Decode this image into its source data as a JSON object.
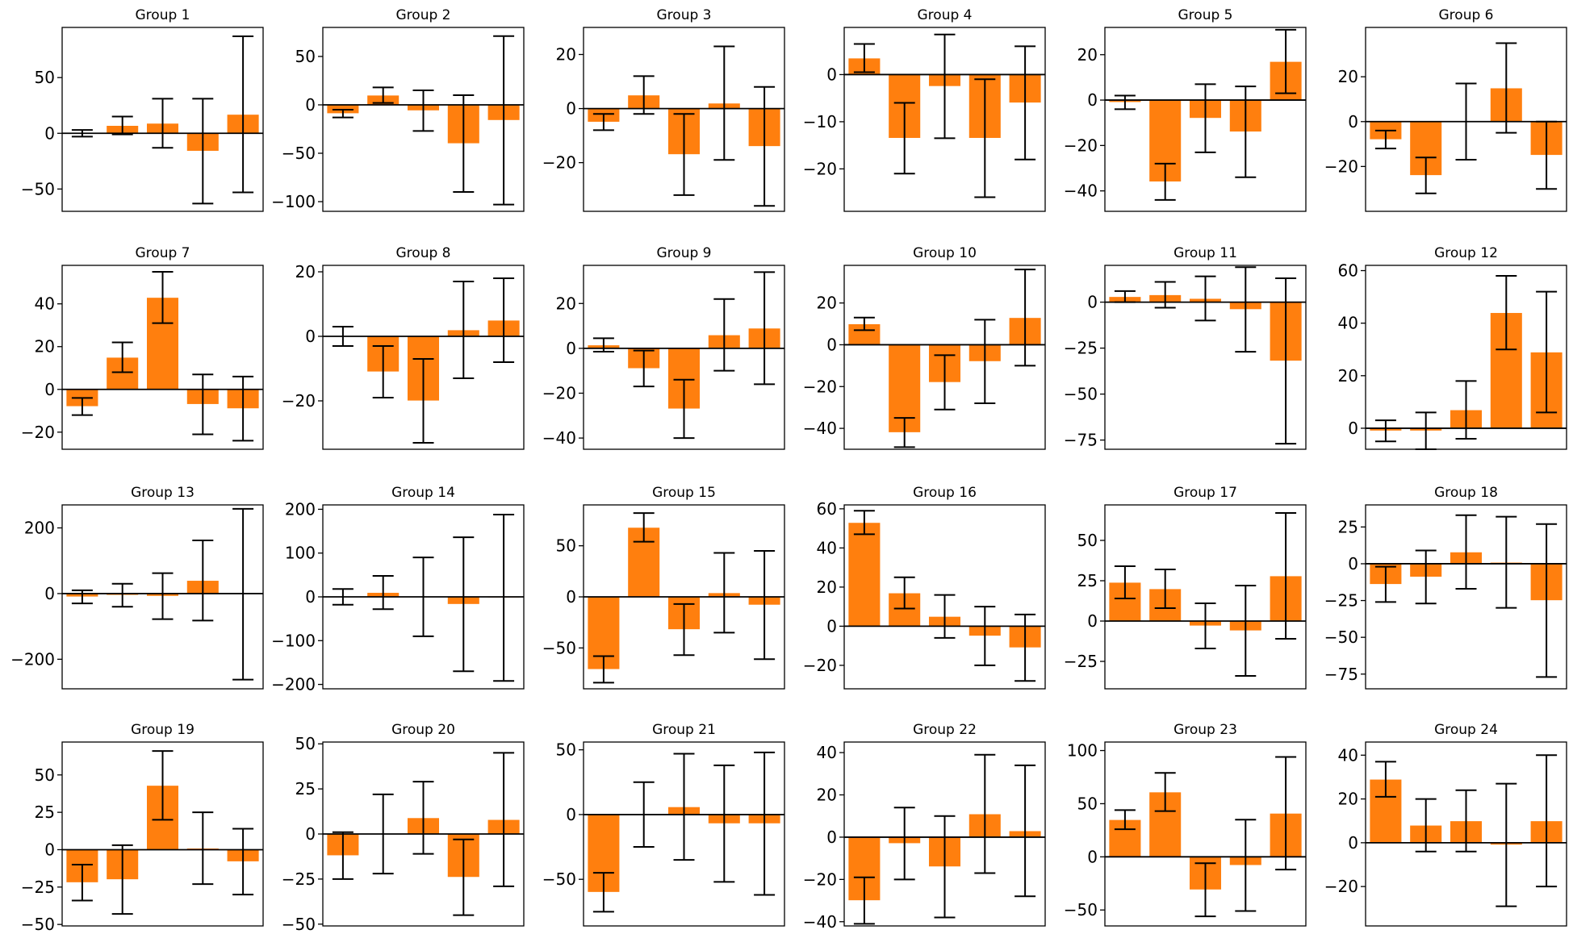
{
  "chart_data": [
    {
      "title": "Group 1",
      "type": "bar",
      "ylim": [
        -70,
        95
      ],
      "ticks": [
        50,
        0,
        -50
      ],
      "values": [
        0,
        7,
        9,
        -16,
        17
      ],
      "errors": [
        3,
        8,
        22,
        47,
        70
      ]
    },
    {
      "title": "Group 2",
      "type": "bar",
      "ylim": [
        -110,
        80
      ],
      "ticks": [
        50,
        0,
        -50,
        -100
      ],
      "values": [
        -9,
        10,
        -6,
        -40,
        -16
      ],
      "errors": [
        4,
        8,
        21,
        50,
        87
      ]
    },
    {
      "title": "Group 3",
      "type": "bar",
      "ylim": [
        -38,
        30
      ],
      "ticks": [
        20,
        0,
        -20
      ],
      "values": [
        -5,
        5,
        -17,
        2,
        -14
      ],
      "errors": [
        3,
        7,
        15,
        21,
        22
      ]
    },
    {
      "title": "Group 4",
      "type": "bar",
      "ylim": [
        -29,
        10
      ],
      "ticks": [
        0,
        -10,
        -20
      ],
      "values": [
        3.5,
        -13.5,
        -2.5,
        -13.5,
        -6
      ],
      "errors": [
        3,
        7.5,
        11,
        12.5,
        12
      ]
    },
    {
      "title": "Group 5",
      "type": "bar",
      "ylim": [
        -49,
        32
      ],
      "ticks": [
        20,
        0,
        -20,
        -40
      ],
      "values": [
        -1,
        -36,
        -8,
        -14,
        17
      ],
      "errors": [
        3,
        8,
        15,
        20,
        14
      ]
    },
    {
      "title": "Group 6",
      "type": "bar",
      "ylim": [
        -40,
        42
      ],
      "ticks": [
        20,
        0,
        -20
      ],
      "values": [
        -8,
        -24,
        0,
        15,
        -15
      ],
      "errors": [
        4,
        8,
        17,
        20,
        15
      ]
    },
    {
      "title": "Group 7",
      "type": "bar",
      "ylim": [
        -28,
        58
      ],
      "ticks": [
        40,
        20,
        0,
        -20
      ],
      "values": [
        -8,
        15,
        43,
        -7,
        -9
      ],
      "errors": [
        4,
        7,
        12,
        14,
        15
      ]
    },
    {
      "title": "Group 8",
      "type": "bar",
      "ylim": [
        -35,
        22
      ],
      "ticks": [
        20,
        0,
        -20
      ],
      "values": [
        0,
        -11,
        -20,
        2,
        5
      ],
      "errors": [
        3,
        8,
        13,
        15,
        13
      ]
    },
    {
      "title": "Group 9",
      "type": "bar",
      "ylim": [
        -45,
        37
      ],
      "ticks": [
        20,
        0,
        -20,
        -40
      ],
      "values": [
        1.5,
        -9,
        -27,
        6,
        9
      ],
      "errors": [
        3,
        8,
        13,
        16,
        25
      ]
    },
    {
      "title": "Group 10",
      "type": "bar",
      "ylim": [
        -50,
        38
      ],
      "ticks": [
        20,
        0,
        -20,
        -40
      ],
      "values": [
        10,
        -42,
        -18,
        -8,
        13
      ],
      "errors": [
        3,
        7,
        13,
        20,
        23
      ]
    },
    {
      "title": "Group 11",
      "type": "bar",
      "ylim": [
        -80,
        20
      ],
      "ticks": [
        0,
        -25,
        -50,
        -75
      ],
      "values": [
        3,
        4,
        2,
        -4,
        -32
      ],
      "errors": [
        3,
        7,
        12,
        23,
        45
      ]
    },
    {
      "title": "Group 12",
      "type": "bar",
      "ylim": [
        -8,
        62
      ],
      "ticks": [
        60,
        40,
        20,
        0
      ],
      "values": [
        -1,
        -1,
        7,
        44,
        29
      ],
      "errors": [
        4,
        7,
        11,
        14,
        23
      ]
    },
    {
      "title": "Group 13",
      "type": "bar",
      "ylim": [
        -290,
        270
      ],
      "ticks": [
        200,
        0,
        -200
      ],
      "values": [
        -10,
        -5,
        -8,
        40,
        -2
      ],
      "errors": [
        20,
        35,
        70,
        122,
        260
      ]
    },
    {
      "title": "Group 14",
      "type": "bar",
      "ylim": [
        -210,
        210
      ],
      "ticks": [
        200,
        100,
        0,
        -100,
        -200
      ],
      "values": [
        0,
        10,
        0,
        -17,
        -2
      ],
      "errors": [
        18,
        38,
        90,
        153,
        190
      ]
    },
    {
      "title": "Group 15",
      "type": "bar",
      "ylim": [
        -90,
        90
      ],
      "ticks": [
        50,
        0,
        -50
      ],
      "values": [
        -71,
        68,
        -32,
        4,
        -8
      ],
      "errors": [
        13,
        14,
        25,
        39,
        53
      ]
    },
    {
      "title": "Group 16",
      "type": "bar",
      "ylim": [
        -32,
        62
      ],
      "ticks": [
        60,
        40,
        20,
        0,
        -20
      ],
      "values": [
        53,
        17,
        5,
        -5,
        -11
      ],
      "errors": [
        6,
        8,
        11,
        15,
        17
      ]
    },
    {
      "title": "Group 17",
      "type": "bar",
      "ylim": [
        -42,
        72
      ],
      "ticks": [
        50,
        25,
        0,
        -25
      ],
      "values": [
        24,
        20,
        -3,
        -6,
        28
      ],
      "errors": [
        10,
        12,
        14,
        28,
        39
      ]
    },
    {
      "title": "Group 18",
      "type": "bar",
      "ylim": [
        -85,
        40
      ],
      "ticks": [
        25,
        0,
        -25,
        -50,
        -75
      ],
      "values": [
        -14,
        -9,
        8,
        1,
        -25
      ],
      "errors": [
        12,
        18,
        25,
        31,
        52
      ]
    },
    {
      "title": "Group 19",
      "type": "bar",
      "ylim": [
        -51,
        72
      ],
      "ticks": [
        50,
        25,
        0,
        -25,
        -50
      ],
      "values": [
        -22,
        -20,
        43,
        1,
        -8
      ],
      "errors": [
        12,
        23,
        23,
        24,
        22
      ]
    },
    {
      "title": "Group 20",
      "type": "bar",
      "ylim": [
        -51,
        51
      ],
      "ticks": [
        50,
        25,
        0,
        -25,
        -50
      ],
      "values": [
        -12,
        0,
        9,
        -24,
        8
      ],
      "errors": [
        13,
        22,
        20,
        21,
        37
      ]
    },
    {
      "title": "Group 21",
      "type": "bar",
      "ylim": [
        -86,
        56
      ],
      "ticks": [
        50,
        0,
        -50
      ],
      "values": [
        -60,
        0,
        6,
        -7,
        -7
      ],
      "errors": [
        15,
        25,
        41,
        45,
        55
      ]
    },
    {
      "title": "Group 22",
      "type": "bar",
      "ylim": [
        -42,
        45
      ],
      "ticks": [
        40,
        20,
        0,
        -20,
        -40
      ],
      "values": [
        -30,
        -3,
        -14,
        11,
        3
      ],
      "errors": [
        11,
        17,
        24,
        28,
        31
      ]
    },
    {
      "title": "Group 23",
      "type": "bar",
      "ylim": [
        -65,
        108
      ],
      "ticks": [
        100,
        50,
        0,
        -50
      ],
      "values": [
        35,
        61,
        -31,
        -8,
        41
      ],
      "errors": [
        9,
        18,
        25,
        43,
        53
      ]
    },
    {
      "title": "Group 24",
      "type": "bar",
      "ylim": [
        -38,
        46
      ],
      "ticks": [
        40,
        20,
        0,
        -20
      ],
      "values": [
        29,
        8,
        10,
        -1,
        10
      ],
      "errors": [
        8,
        12,
        14,
        28,
        30
      ]
    }
  ],
  "colors": {
    "bar": "#ff7f0e",
    "bar_edge": "#ffffff",
    "line": "#000000"
  }
}
